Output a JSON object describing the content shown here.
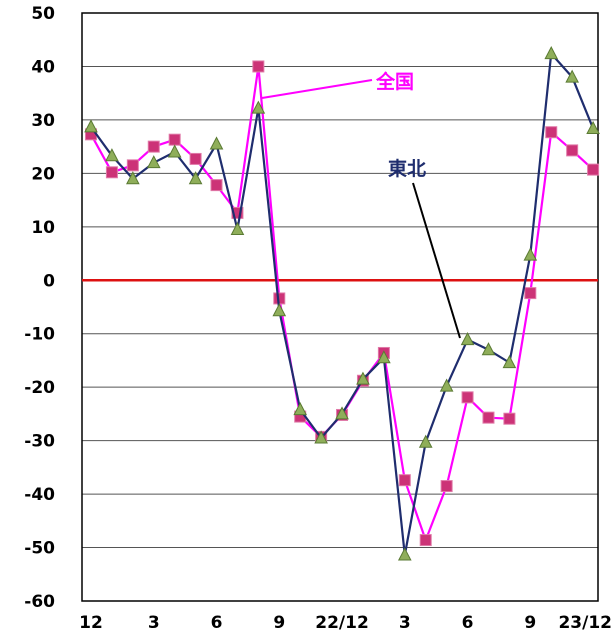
{
  "chart_data": {
    "type": "line",
    "x": [
      "12",
      "1",
      "2",
      "3",
      "4",
      "5",
      "6",
      "7",
      "8",
      "9",
      "10",
      "11",
      "22/12",
      "1",
      "2",
      "3",
      "4",
      "5",
      "6",
      "7",
      "8",
      "9",
      "10",
      "11",
      "23/12"
    ],
    "x_tick_labels": [
      "12",
      "3",
      "6",
      "9",
      "22/12",
      "3",
      "6",
      "9",
      "23/12"
    ],
    "x_tick_label_indices": [
      0,
      3,
      6,
      9,
      12,
      15,
      18,
      21,
      24
    ],
    "y_ticks": [
      50,
      40,
      30,
      20,
      10,
      0,
      -10,
      -20,
      -30,
      -40,
      -50,
      -60
    ],
    "ylim": [
      -60,
      50
    ],
    "grid": true,
    "series": [
      {
        "name": "全国",
        "color": "#ff00ff",
        "marker": "square",
        "marker_color": "#cc3377",
        "values": [
          27.3,
          20.2,
          21.5,
          25.0,
          26.3,
          22.7,
          17.8,
          12.6,
          40.0,
          -3.4,
          -25.5,
          -29.3,
          -25.2,
          -18.8,
          -13.6,
          -37.4,
          -48.6,
          -38.5,
          -21.9,
          -25.7,
          -25.9,
          -2.4,
          27.7,
          24.3,
          20.7
        ]
      },
      {
        "name": "東北",
        "color": "#1f2d6e",
        "marker": "triangle",
        "marker_color": "#8fae5a",
        "values": [
          28.7,
          23.3,
          19.0,
          22.0,
          24.0,
          19.0,
          25.5,
          9.5,
          32.2,
          -5.7,
          -24.2,
          -29.5,
          -25.0,
          -18.5,
          -14.5,
          -51.4,
          -30.3,
          -19.8,
          -11.1,
          -13.0,
          -15.4,
          4.7,
          42.4,
          38.0,
          28.4
        ]
      }
    ],
    "reference_line": {
      "y": 0,
      "color": "#dd1111"
    }
  }
}
